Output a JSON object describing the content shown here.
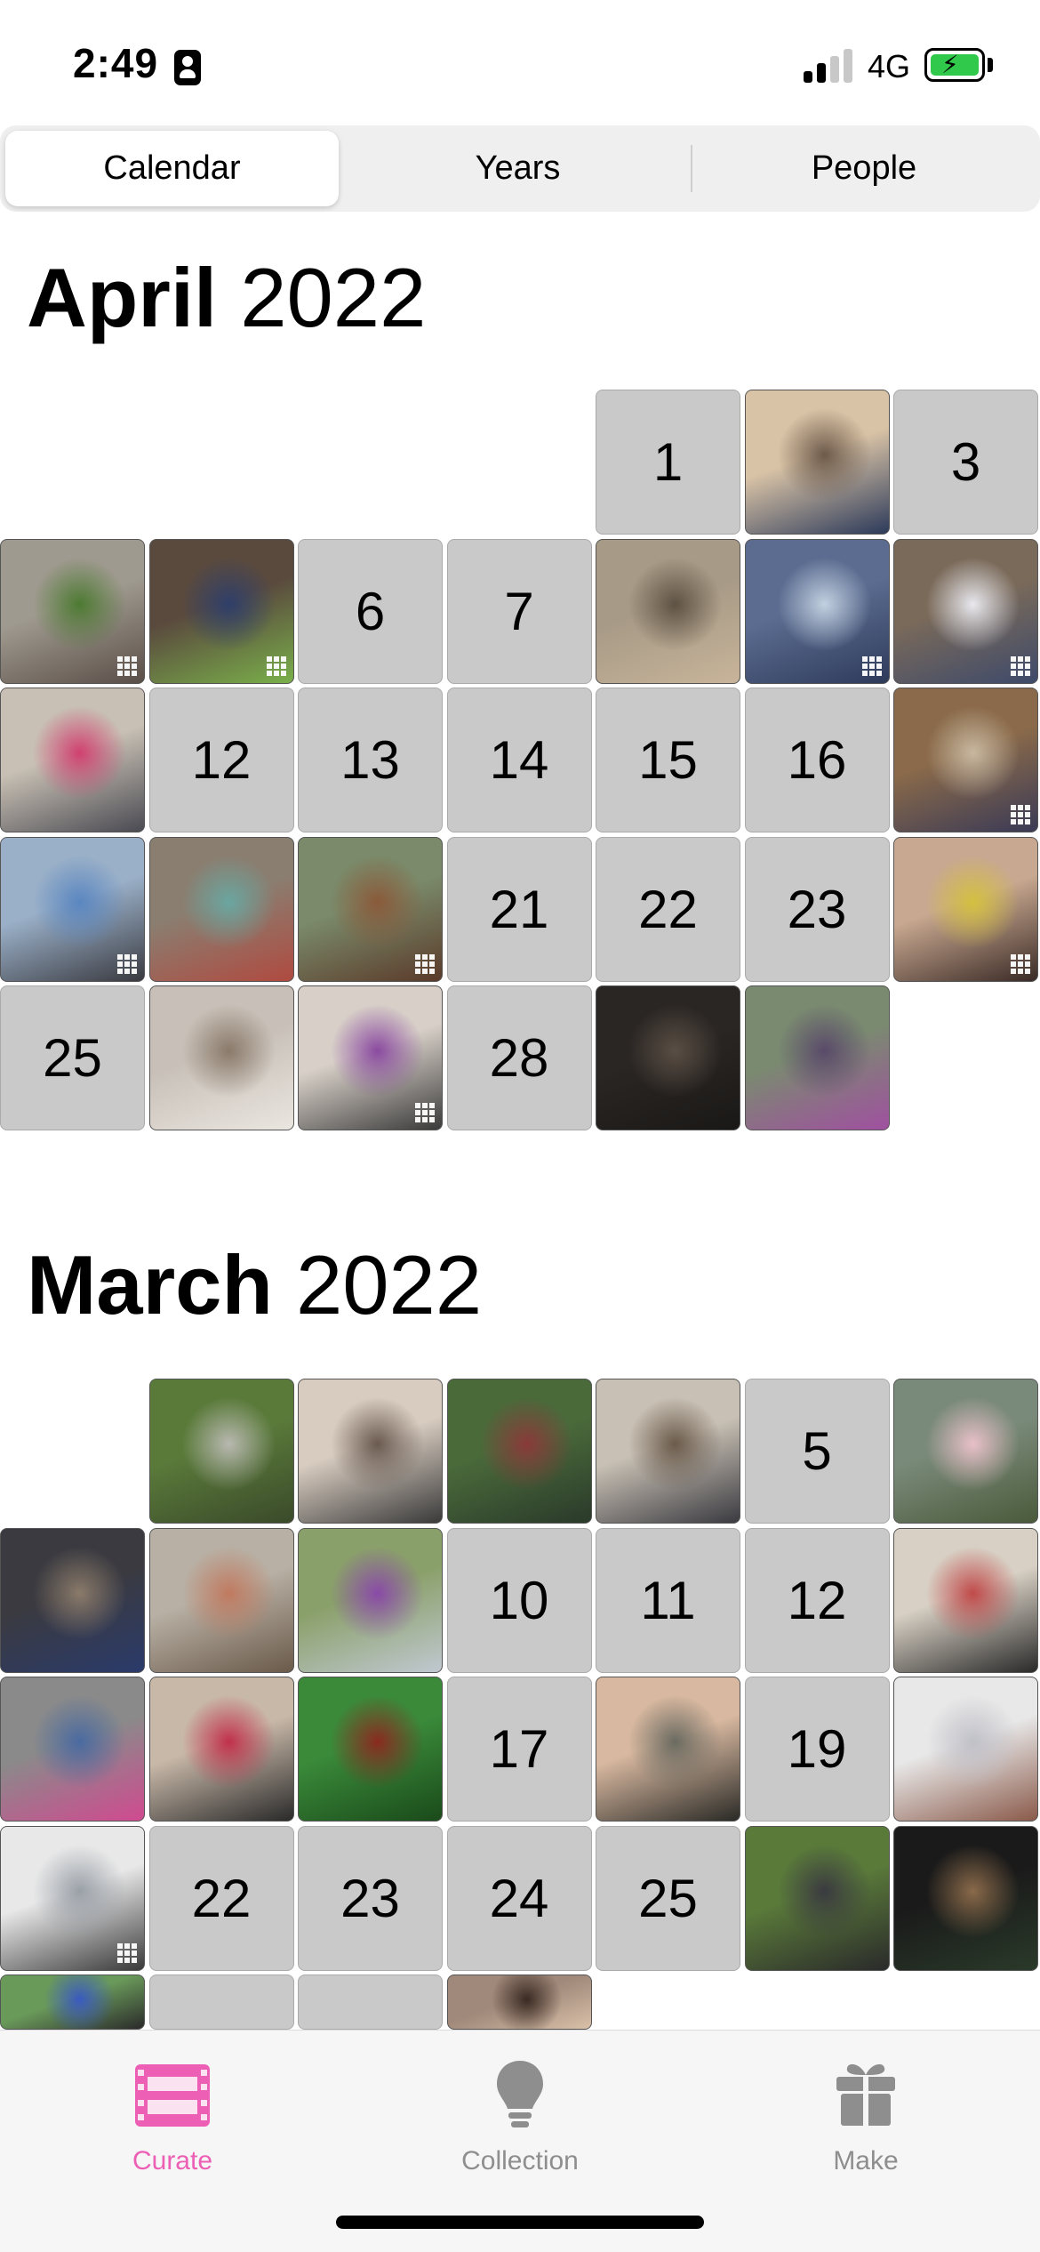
{
  "status_bar": {
    "time": "2:49",
    "network": "4G"
  },
  "tabs_top": [
    {
      "label": "Calendar",
      "selected": true
    },
    {
      "label": "Years",
      "selected": false
    },
    {
      "label": "People",
      "selected": false
    }
  ],
  "months": [
    {
      "month": "April",
      "year": "2022",
      "days": [
        {
          "col": 4,
          "row": 0,
          "type": "empty",
          "label": "1"
        },
        {
          "col": 5,
          "row": 0,
          "type": "photo",
          "colors": [
            "#d9c3a6",
            "#6d5a4a",
            "#2c3a5a"
          ],
          "multi": false
        },
        {
          "col": 6,
          "row": 0,
          "type": "empty",
          "label": "3"
        },
        {
          "col": 0,
          "row": 1,
          "type": "photo",
          "colors": [
            "#9f9a8f",
            "#4d7a32",
            "#5a4e48"
          ],
          "multi": true
        },
        {
          "col": 1,
          "row": 1,
          "type": "photo",
          "colors": [
            "#5a4a3e",
            "#2f3f6a",
            "#7ab04a"
          ],
          "multi": true
        },
        {
          "col": 2,
          "row": 1,
          "type": "empty",
          "label": "6"
        },
        {
          "col": 3,
          "row": 1,
          "type": "empty",
          "label": "7"
        },
        {
          "col": 4,
          "row": 1,
          "type": "photo",
          "colors": [
            "#a79a86",
            "#5e5244",
            "#c8b49a"
          ],
          "multi": false
        },
        {
          "col": 5,
          "row": 1,
          "type": "photo",
          "colors": [
            "#5b6c90",
            "#c2d0e0",
            "#2e3a5a"
          ],
          "multi": true
        },
        {
          "col": 6,
          "row": 1,
          "type": "photo",
          "colors": [
            "#7a6a5a",
            "#e8e8ee",
            "#3e4a6a"
          ],
          "multi": true
        },
        {
          "col": 0,
          "row": 2,
          "type": "photo",
          "colors": [
            "#c8c0b4",
            "#d04070",
            "#4a4a52"
          ],
          "multi": false
        },
        {
          "col": 1,
          "row": 2,
          "type": "empty",
          "label": "12"
        },
        {
          "col": 2,
          "row": 2,
          "type": "empty",
          "label": "13"
        },
        {
          "col": 3,
          "row": 2,
          "type": "empty",
          "label": "14"
        },
        {
          "col": 4,
          "row": 2,
          "type": "empty",
          "label": "15"
        },
        {
          "col": 5,
          "row": 2,
          "type": "empty",
          "label": "16"
        },
        {
          "col": 6,
          "row": 2,
          "type": "photo",
          "colors": [
            "#8a6a4a",
            "#c8b8a0",
            "#3a3a56"
          ],
          "multi": true
        },
        {
          "col": 0,
          "row": 3,
          "type": "photo",
          "colors": [
            "#9ab0c8",
            "#5a86c0",
            "#3a3a40"
          ],
          "multi": true
        },
        {
          "col": 1,
          "row": 3,
          "type": "photo",
          "colors": [
            "#8a7e70",
            "#6aa6a0",
            "#b04a40"
          ],
          "multi": false
        },
        {
          "col": 2,
          "row": 3,
          "type": "photo",
          "colors": [
            "#7a8a6a",
            "#8a5a3a",
            "#5a3a2a"
          ],
          "multi": true
        },
        {
          "col": 3,
          "row": 3,
          "type": "empty",
          "label": "21"
        },
        {
          "col": 4,
          "row": 3,
          "type": "empty",
          "label": "22"
        },
        {
          "col": 5,
          "row": 3,
          "type": "empty",
          "label": "23"
        },
        {
          "col": 6,
          "row": 3,
          "type": "photo",
          "colors": [
            "#c8a890",
            "#d4c040",
            "#3a2a26"
          ],
          "multi": true
        },
        {
          "col": 0,
          "row": 4,
          "type": "empty",
          "label": "25"
        },
        {
          "col": 1,
          "row": 4,
          "type": "photo",
          "colors": [
            "#c8c0b8",
            "#8a7a6a",
            "#eae6e0"
          ],
          "multi": false
        },
        {
          "col": 2,
          "row": 4,
          "type": "photo",
          "colors": [
            "#d8d0c8",
            "#8a4aa0",
            "#3a3a3a"
          ],
          "multi": true
        },
        {
          "col": 3,
          "row": 4,
          "type": "empty",
          "label": "28"
        },
        {
          "col": 4,
          "row": 4,
          "type": "photo",
          "colors": [
            "#2a2624",
            "#5a4e44",
            "#1a1816"
          ],
          "multi": false
        },
        {
          "col": 5,
          "row": 4,
          "type": "photo",
          "colors": [
            "#7a8a70",
            "#5a4a6a",
            "#a050a0"
          ],
          "multi": false
        }
      ]
    },
    {
      "month": "March",
      "year": "2022",
      "days": [
        {
          "col": 1,
          "row": 0,
          "type": "photo",
          "colors": [
            "#5a7a3a",
            "#b8b8b0",
            "#3a4a2a"
          ],
          "multi": false
        },
        {
          "col": 2,
          "row": 0,
          "type": "photo",
          "colors": [
            "#d8ccc0",
            "#6a5a50",
            "#3a3a3a"
          ],
          "multi": false
        },
        {
          "col": 3,
          "row": 0,
          "type": "photo",
          "colors": [
            "#4a6a3a",
            "#8a3a3a",
            "#2a3a2a"
          ],
          "multi": false
        },
        {
          "col": 4,
          "row": 0,
          "type": "photo",
          "colors": [
            "#c8c0b4",
            "#6a5a4a",
            "#3a3a40"
          ],
          "multi": false
        },
        {
          "col": 5,
          "row": 0,
          "type": "empty",
          "label": "5"
        },
        {
          "col": 6,
          "row": 0,
          "type": "photo",
          "colors": [
            "#7a8a7a",
            "#e8c0c8",
            "#4a5a3a"
          ],
          "multi": false
        },
        {
          "col": 0,
          "row": 1,
          "type": "photo",
          "colors": [
            "#3a3a40",
            "#8a7a6a",
            "#2a3a6a"
          ],
          "multi": false
        },
        {
          "col": 1,
          "row": 1,
          "type": "photo",
          "colors": [
            "#b8b0a4",
            "#c07a60",
            "#6a5a4a"
          ],
          "multi": false
        },
        {
          "col": 2,
          "row": 1,
          "type": "photo",
          "colors": [
            "#8aa06a",
            "#8a4aa8",
            "#c0c8d0"
          ],
          "multi": false
        },
        {
          "col": 3,
          "row": 1,
          "type": "empty",
          "label": "10"
        },
        {
          "col": 4,
          "row": 1,
          "type": "empty",
          "label": "11"
        },
        {
          "col": 5,
          "row": 1,
          "type": "empty",
          "label": "12"
        },
        {
          "col": 6,
          "row": 1,
          "type": "photo",
          "colors": [
            "#d8d0c4",
            "#c04a4a",
            "#2a2a2a"
          ],
          "multi": false
        },
        {
          "col": 0,
          "row": 2,
          "type": "photo",
          "colors": [
            "#8a8a8a",
            "#4a6aa0",
            "#d04a90"
          ],
          "multi": false
        },
        {
          "col": 1,
          "row": 2,
          "type": "photo",
          "colors": [
            "#c8b8a8",
            "#c0304a",
            "#2a2a2a"
          ],
          "multi": false
        },
        {
          "col": 2,
          "row": 2,
          "type": "photo",
          "colors": [
            "#3a8a3a",
            "#8a2a20",
            "#1a4a1a"
          ],
          "multi": false
        },
        {
          "col": 3,
          "row": 2,
          "type": "empty",
          "label": "17"
        },
        {
          "col": 4,
          "row": 2,
          "type": "photo",
          "colors": [
            "#d8b8a0",
            "#6a6a60",
            "#2a2a26"
          ],
          "multi": false
        },
        {
          "col": 5,
          "row": 2,
          "type": "empty",
          "label": "19"
        },
        {
          "col": 6,
          "row": 2,
          "type": "photo",
          "colors": [
            "#e8e8e8",
            "#c0c0c8",
            "#8a5a4a"
          ],
          "multi": false
        },
        {
          "col": 0,
          "row": 3,
          "type": "photo",
          "colors": [
            "#e8e8e8",
            "#9aa0a8",
            "#3a3a3a"
          ],
          "multi": true
        },
        {
          "col": 1,
          "row": 3,
          "type": "empty",
          "label": "22"
        },
        {
          "col": 2,
          "row": 3,
          "type": "empty",
          "label": "23"
        },
        {
          "col": 3,
          "row": 3,
          "type": "empty",
          "label": "24"
        },
        {
          "col": 4,
          "row": 3,
          "type": "empty",
          "label": "25"
        },
        {
          "col": 5,
          "row": 3,
          "type": "photo",
          "colors": [
            "#5a7a3a",
            "#3a3a40",
            "#2a2a2a"
          ],
          "multi": false
        },
        {
          "col": 6,
          "row": 3,
          "type": "photo",
          "colors": [
            "#1a1a1a",
            "#8a6a4a",
            "#2a3a2a"
          ],
          "multi": false
        },
        {
          "col": 0,
          "row": 4,
          "type": "photo",
          "colors": [
            "#6a9a5a",
            "#3a5ac0",
            "#2a2a2a"
          ],
          "multi": false
        },
        {
          "col": 1,
          "row": 4,
          "type": "empty",
          "label": ""
        },
        {
          "col": 2,
          "row": 4,
          "type": "empty",
          "label": ""
        },
        {
          "col": 3,
          "row": 4,
          "type": "photo",
          "colors": [
            "#a0887a",
            "#3a2a22",
            "#d8c0a8"
          ],
          "multi": false
        }
      ]
    }
  ],
  "bottom_tabs": [
    {
      "label": "Curate",
      "icon": "film-icon",
      "active": true
    },
    {
      "label": "Collection",
      "icon": "lightbulb-icon",
      "active": false
    },
    {
      "label": "Make",
      "icon": "gift-icon",
      "active": false
    }
  ],
  "colors": {
    "accent": "#ec5fb5",
    "inactive": "#8e8e8e",
    "empty_day": "#c9c9c9"
  }
}
